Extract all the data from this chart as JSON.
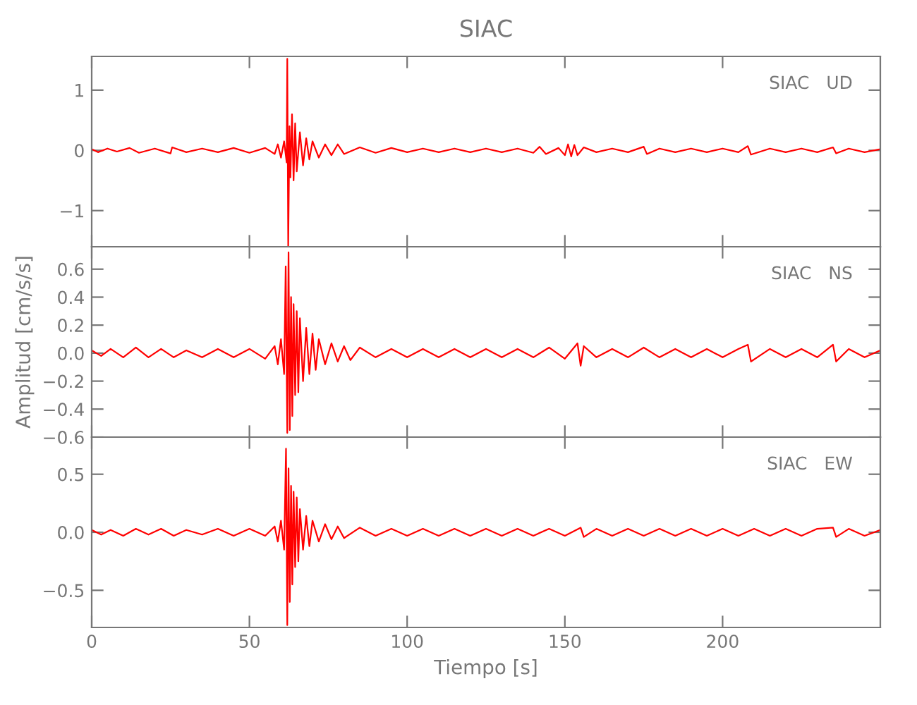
{
  "chart_data": [
    {
      "type": "line",
      "title": "SIAC",
      "annotations": [
        "SIAC   UD"
      ],
      "tick_labels": "y",
      "grid": false,
      "xlim": [
        0,
        250
      ],
      "xticks": [
        0,
        50,
        100,
        150,
        200
      ],
      "ylim": [
        -1.6,
        1.56
      ],
      "yticks": [
        {
          "value": -1,
          "label": "−1"
        },
        0,
        1
      ],
      "series": [
        {
          "color": "#ff0000",
          "x": [
            0,
            2,
            5,
            8,
            12,
            15,
            20,
            25,
            25.5,
            30,
            35,
            40,
            45,
            50,
            55,
            58,
            59,
            60,
            61,
            61.8,
            62,
            62.3,
            62.7,
            63,
            63.5,
            64,
            64.5,
            65,
            66,
            67,
            68,
            69,
            70,
            72,
            74,
            76,
            78,
            80,
            85,
            90,
            95,
            100,
            105,
            110,
            115,
            120,
            125,
            130,
            135,
            140,
            142,
            144,
            148,
            150,
            151,
            152,
            153,
            154,
            156,
            160,
            165,
            170,
            175,
            176,
            180,
            185,
            190,
            195,
            200,
            205,
            208,
            209,
            215,
            220,
            225,
            230,
            235,
            236,
            240,
            245,
            250
          ],
          "values": [
            0.02,
            -0.03,
            0.03,
            -0.02,
            0.04,
            -0.04,
            0.03,
            -0.05,
            0.05,
            -0.03,
            0.03,
            -0.03,
            0.04,
            -0.04,
            0.04,
            -0.06,
            0.1,
            -0.12,
            0.15,
            -0.2,
            1.52,
            -1.6,
            0.4,
            -0.45,
            0.6,
            -0.5,
            0.45,
            -0.35,
            0.3,
            -0.25,
            0.2,
            -0.15,
            0.15,
            -0.12,
            0.1,
            -0.08,
            0.1,
            -0.06,
            0.05,
            -0.04,
            0.04,
            -0.03,
            0.03,
            -0.03,
            0.03,
            -0.03,
            0.03,
            -0.03,
            0.03,
            -0.04,
            0.06,
            -0.06,
            0.04,
            -0.08,
            0.1,
            -0.1,
            0.09,
            -0.08,
            0.05,
            -0.03,
            0.03,
            -0.03,
            0.06,
            -0.06,
            0.03,
            -0.03,
            0.03,
            -0.03,
            0.03,
            -0.03,
            0.07,
            -0.07,
            0.03,
            -0.03,
            0.03,
            -0.03,
            0.05,
            -0.05,
            0.03,
            -0.03,
            0.02
          ]
        }
      ]
    },
    {
      "type": "line",
      "ylabel": "Amplitud [cm/s/s]",
      "annotations": [
        "SIAC   NS"
      ],
      "tick_labels": "y",
      "grid": false,
      "xlim": [
        0,
        250
      ],
      "xticks": [
        0,
        50,
        100,
        150,
        200
      ],
      "ylim": [
        -0.6,
        0.76
      ],
      "yticks": [
        {
          "value": -0.6,
          "label": "−0.6"
        },
        {
          "value": -0.4,
          "label": "−0.4"
        },
        {
          "value": -0.2,
          "label": "−0.2"
        },
        {
          "value": 0,
          "label": "0.0"
        },
        0.2,
        0.4,
        0.6
      ],
      "series": [
        {
          "color": "#ff0000",
          "x": [
            0,
            3,
            6,
            10,
            14,
            18,
            22,
            26,
            30,
            35,
            40,
            45,
            50,
            55,
            58,
            59,
            60,
            61,
            61.5,
            62,
            62.4,
            62.8,
            63.2,
            63.6,
            64,
            64.5,
            65,
            65.5,
            66,
            67,
            68,
            69,
            70,
            71,
            72,
            74,
            76,
            78,
            80,
            82,
            85,
            90,
            95,
            100,
            105,
            110,
            115,
            120,
            125,
            130,
            135,
            140,
            145,
            150,
            154,
            155,
            156,
            160,
            165,
            170,
            175,
            180,
            185,
            190,
            195,
            200,
            205,
            208,
            209,
            215,
            220,
            225,
            230,
            235,
            236,
            240,
            245,
            250
          ],
          "values": [
            0.02,
            -0.02,
            0.03,
            -0.03,
            0.04,
            -0.03,
            0.03,
            -0.03,
            0.02,
            -0.03,
            0.03,
            -0.03,
            0.03,
            -0.04,
            0.05,
            -0.08,
            0.1,
            -0.15,
            0.62,
            -0.57,
            0.72,
            -0.55,
            0.4,
            -0.45,
            0.35,
            -0.3,
            0.3,
            -0.28,
            0.25,
            -0.2,
            0.18,
            -0.15,
            0.14,
            -0.12,
            0.1,
            -0.08,
            0.07,
            -0.06,
            0.05,
            -0.05,
            0.04,
            -0.03,
            0.03,
            -0.03,
            0.03,
            -0.03,
            0.03,
            -0.03,
            0.03,
            -0.03,
            0.03,
            -0.03,
            0.04,
            -0.04,
            0.07,
            -0.09,
            0.05,
            -0.03,
            0.03,
            -0.03,
            0.04,
            -0.03,
            0.03,
            -0.03,
            0.03,
            -0.03,
            0.03,
            0.06,
            -0.06,
            0.03,
            -0.03,
            0.03,
            -0.03,
            0.06,
            -0.06,
            0.03,
            -0.03,
            0.02
          ]
        }
      ]
    },
    {
      "type": "line",
      "xlabel": "Tiempo [s]",
      "annotations": [
        "SIAC   EW"
      ],
      "grid": false,
      "xlim": [
        0,
        250
      ],
      "xticks": [
        0,
        50,
        100,
        150,
        200
      ],
      "ylim": [
        -0.82,
        0.82
      ],
      "yticks": [
        {
          "value": -0.5,
          "label": "−0.5"
        },
        {
          "value": 0,
          "label": "0.0"
        },
        0.5
      ],
      "series": [
        {
          "color": "#ff0000",
          "x": [
            0,
            3,
            6,
            10,
            14,
            18,
            22,
            26,
            30,
            35,
            40,
            45,
            50,
            55,
            58,
            59,
            60,
            61,
            61.6,
            62,
            62.4,
            62.8,
            63.2,
            63.6,
            64,
            64.5,
            65,
            65.5,
            66,
            67,
            68,
            69,
            70,
            72,
            74,
            76,
            78,
            80,
            85,
            90,
            95,
            100,
            105,
            110,
            115,
            120,
            125,
            130,
            135,
            140,
            145,
            150,
            155,
            156,
            160,
            165,
            170,
            175,
            180,
            185,
            190,
            195,
            200,
            205,
            210,
            215,
            220,
            225,
            230,
            235,
            236,
            240,
            245,
            250
          ],
          "values": [
            0.02,
            -0.02,
            0.02,
            -0.03,
            0.03,
            -0.02,
            0.03,
            -0.03,
            0.02,
            -0.02,
            0.03,
            -0.03,
            0.03,
            -0.03,
            0.05,
            -0.08,
            0.1,
            -0.15,
            0.72,
            -0.8,
            0.55,
            -0.6,
            0.4,
            -0.45,
            0.35,
            -0.3,
            0.3,
            -0.25,
            0.2,
            -0.15,
            0.14,
            -0.12,
            0.1,
            -0.08,
            0.07,
            -0.06,
            0.05,
            -0.05,
            0.04,
            -0.03,
            0.03,
            -0.03,
            0.03,
            -0.03,
            0.03,
            -0.03,
            0.03,
            -0.03,
            0.03,
            -0.03,
            0.03,
            -0.03,
            0.04,
            -0.04,
            0.03,
            -0.03,
            0.03,
            -0.03,
            0.03,
            -0.03,
            0.03,
            -0.03,
            0.03,
            -0.03,
            0.03,
            -0.03,
            0.03,
            -0.03,
            0.03,
            0.04,
            -0.04,
            0.03,
            -0.03,
            0.02
          ]
        }
      ]
    }
  ]
}
